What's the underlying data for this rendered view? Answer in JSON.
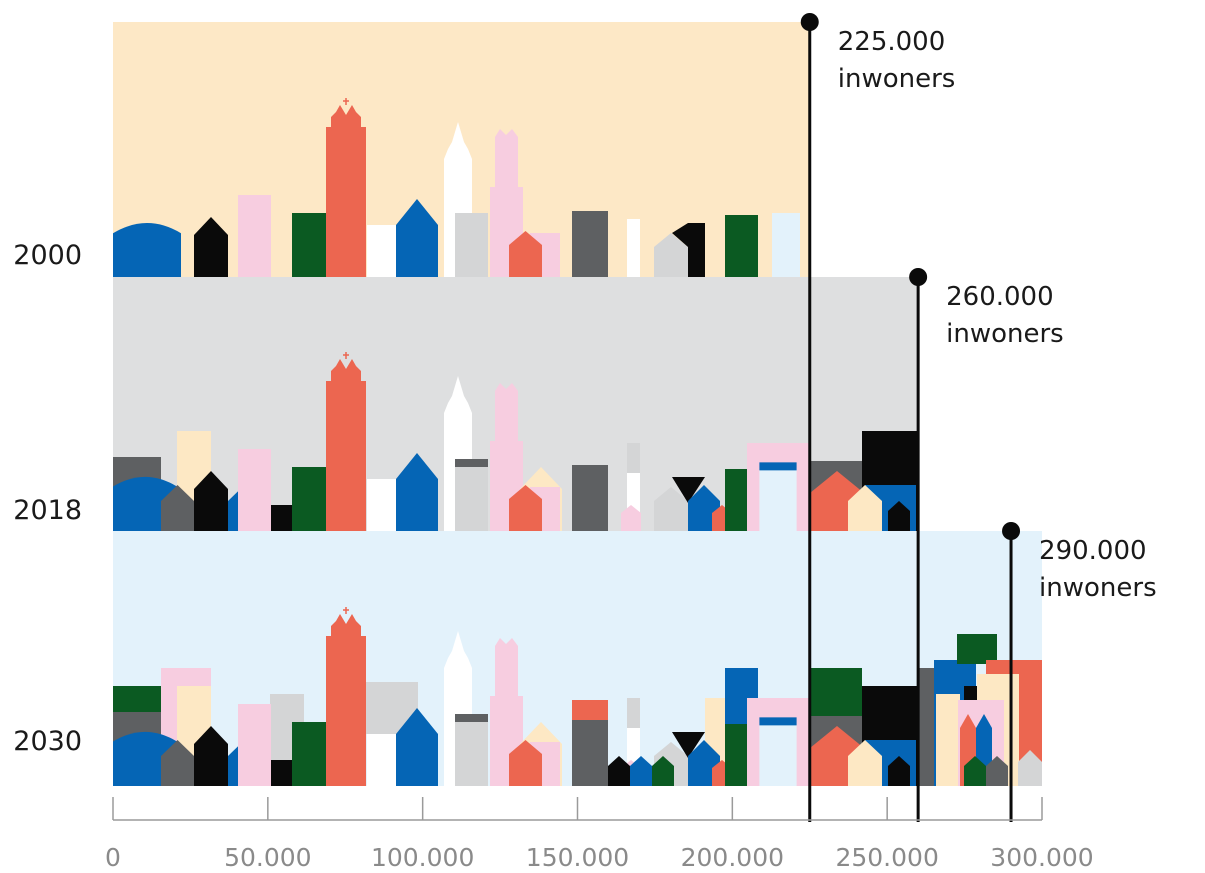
{
  "chart_data": {
    "type": "bar",
    "categories": [
      "2000",
      "2018",
      "2030"
    ],
    "series": [
      {
        "values": [
          225000,
          260000,
          290000
        ]
      }
    ],
    "data_labels": [
      {
        "value": "225.000",
        "unit": "inwoners"
      },
      {
        "value": "260.000",
        "unit": "inwoners"
      },
      {
        "value": "290.000",
        "unit": "inwoners"
      }
    ],
    "x_ticks": [
      0,
      50000,
      100000,
      150000,
      200000,
      250000,
      300000
    ],
    "x_tick_labels": [
      "0",
      "50.000",
      "100.000",
      "150.000",
      "200.000",
      "250.000",
      "300.000"
    ],
    "xlim": [
      0,
      300000
    ],
    "orientation": "horizontal",
    "title": "",
    "xlabel": "",
    "ylabel": "",
    "grid": false,
    "legend": "none"
  },
  "colors": {
    "band_2000": "#fde8c6",
    "band_2018": "#dedfe0",
    "band_2030": "#e3f2fb",
    "coral": "#ec6650",
    "blue": "#0565b5",
    "green": "#0b5a22",
    "black": "#0a0a0a",
    "dark_gray": "#5e6062",
    "light_gray": "#d4d5d6",
    "pink": "#f7cde0",
    "cream": "#fde8c4",
    "pale_blue": "#e3f2fb",
    "white": "#ffffff",
    "axis": "#9a9a9a"
  }
}
